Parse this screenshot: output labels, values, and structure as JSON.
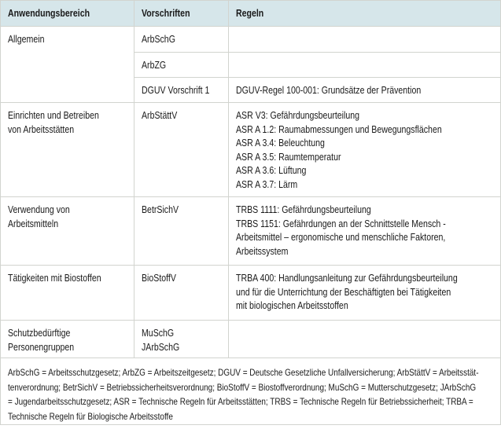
{
  "header": {
    "col1": "Anwendungsbereich",
    "col2": "Vorschriften",
    "col3": "Regeln"
  },
  "rows": [
    {
      "bereich": [
        "Allgemein"
      ],
      "sub": [
        {
          "vorschrift": [
            "ArbSchG"
          ],
          "regeln": []
        },
        {
          "vorschrift": [
            "ArbZG"
          ],
          "regeln": []
        },
        {
          "vorschrift": [
            "DGUV Vorschrift 1"
          ],
          "regeln": [
            "DGUV-Regel 100-001: Grundsätze der Prävention"
          ]
        }
      ]
    },
    {
      "bereich": [
        "Einrichten und Betreiben",
        "von Arbeitsstätten"
      ],
      "vorschrift": [
        "ArbStättV"
      ],
      "regeln": [
        "ASR V3: Gefährdungsbeurteilung",
        "ASR A 1.2: Raumabmessungen und Bewegungsflächen",
        "ASR A 3.4: Beleuchtung",
        "ASR A 3.5: Raumtemperatur",
        "ASR A 3.6: Lüftung",
        "ASR A 3.7: Lärm"
      ]
    },
    {
      "bereich": [
        "Verwendung von",
        "Arbeitsmitteln"
      ],
      "vorschrift": [
        "BetrSichV"
      ],
      "regeln": [
        "TRBS 1111: Gefährdungsbeurteilung",
        "TRBS 1151: Gefährdungen an der Schnittstelle Mensch -",
        "Arbeitsmittel – ergonomische und menschliche Faktoren,",
        "Arbeitssystem"
      ]
    },
    {
      "bereich": [
        "Tätigkeiten mit Biostoffen"
      ],
      "vorschrift": [
        "BioStoffV"
      ],
      "regeln": [
        "TRBA 400: Handlungsanleitung zur Gefährdungsbeurteilung",
        "und für die Unterrichtung der Beschäftigten bei Tätigkeiten",
        "mit biologischen Arbeitsstoffen"
      ]
    },
    {
      "bereich": [
        "Schutzbedürftige",
        "Personengruppen"
      ],
      "vorschrift": [
        "MuSchG",
        "JArbSchG"
      ],
      "regeln": []
    }
  ],
  "footnote": [
    "ArbSchG = Arbeitsschutzgesetz; ArbZG = Arbeitszeitgesetz; DGUV = Deutsche Gesetzliche Unfallversicherung; ArbStättV = Arbeitsstät-",
    "tenverordnung; BetrSichV = Betriebssicherheitsverordnung; BioStoffV = Biostoffverordnung; MuSchG = Mutterschutzgesetz; JArbSchG",
    "= Jugendarbeitsschutzgesetz; ASR = Technische Regeln für Arbeitsstätten; TRBS = Technische Regeln für Betriebssicherheit; TRBA =",
    "Technische Regeln für Biologische Arbeitsstoffe"
  ]
}
